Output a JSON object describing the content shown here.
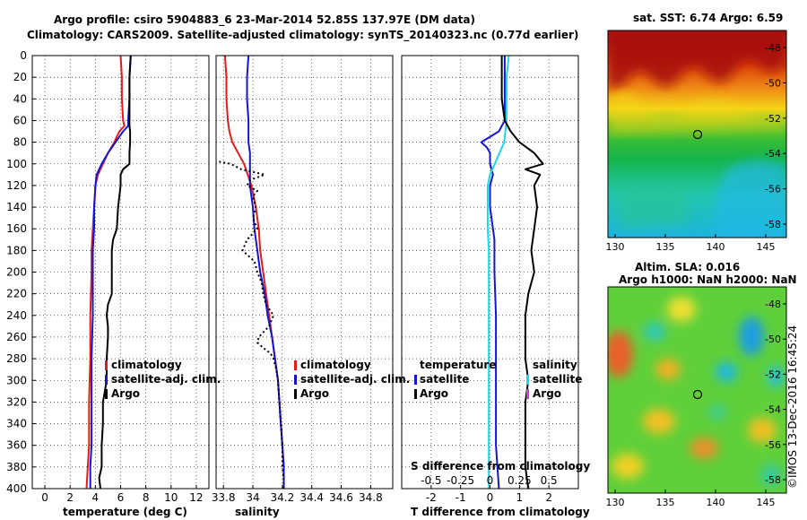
{
  "header": {
    "line1": "Argo profile: csiro 5904883_6 23-Mar-2014 52.85S 137.97E (DM data)",
    "line2": "Climatology: CARS2009. Satellite-adjusted climatology: synTS_20140323.nc (0.77d earlier)"
  },
  "colors": {
    "climatology": "#e41a1c",
    "satellite": "#1515d6",
    "argo": "#000000",
    "cyan": "#19d9e6"
  },
  "legend": {
    "climatology": "climatology",
    "satellite_adj": "satellite-adj. clim.",
    "argo": "Argo",
    "temperature": "temperature",
    "salinity": "salinity",
    "satellite": "satellite"
  },
  "sst_map": {
    "title": "sat. SST: 6.74 Argo: 6.59",
    "yticks": [
      "-48",
      "-50",
      "-52",
      "-54",
      "-56",
      "-58"
    ],
    "xticks": [
      "130",
      "135",
      "140",
      "145"
    ]
  },
  "sla_map": {
    "title1": "Altim. SLA: 0.016",
    "title2": "Argo h1000: NaN h2000: NaN",
    "yticks": [
      "-48",
      "-50",
      "-52",
      "-54",
      "-56",
      "-58"
    ],
    "xticks": [
      "130",
      "135",
      "140",
      "145"
    ]
  },
  "stamp": "©IMOS 13-Dec-2016 16:45:24",
  "chart_data": [
    {
      "type": "line",
      "id": "temperature",
      "xlabel": "temperature (deg C)",
      "xlim": [
        -1,
        13
      ],
      "ylim": [
        400,
        0
      ],
      "xticks": [
        0,
        2,
        4,
        6,
        8,
        10,
        12
      ],
      "yticks": [
        0,
        20,
        40,
        60,
        80,
        100,
        120,
        140,
        160,
        180,
        200,
        220,
        240,
        260,
        280,
        300,
        320,
        340,
        360,
        380,
        400
      ],
      "series": [
        {
          "name": "climatology",
          "depth": [
            0,
            20,
            40,
            60,
            65,
            70,
            80,
            90,
            100,
            110,
            120,
            140,
            160,
            170,
            180,
            200,
            240,
            280,
            320,
            360,
            380,
            400
          ],
          "values": [
            6.0,
            6.1,
            6.1,
            6.2,
            6.3,
            5.9,
            5.5,
            5.0,
            4.6,
            4.2,
            4.0,
            3.9,
            3.8,
            3.75,
            3.7,
            3.7,
            3.6,
            3.6,
            3.5,
            3.5,
            3.4,
            3.3
          ]
        },
        {
          "name": "satellite-adj. clim.",
          "depth": [
            0,
            20,
            40,
            60,
            65,
            70,
            80,
            90,
            100,
            110,
            120,
            140,
            160,
            170,
            180,
            200,
            240,
            280,
            320,
            360,
            380,
            400
          ],
          "values": [
            6.8,
            6.7,
            6.7,
            6.6,
            6.6,
            6.2,
            5.6,
            5.0,
            4.5,
            4.1,
            4.0,
            3.9,
            3.9,
            3.85,
            3.8,
            3.8,
            3.8,
            3.7,
            3.7,
            3.7,
            3.6,
            3.6
          ]
        },
        {
          "name": "Argo",
          "depth": [
            0,
            20,
            40,
            60,
            65,
            70,
            80,
            90,
            100,
            105,
            110,
            120,
            140,
            160,
            170,
            180,
            200,
            220,
            230,
            240,
            250,
            260,
            280,
            300,
            320,
            340,
            360,
            380,
            390,
            400
          ],
          "values": [
            6.8,
            6.7,
            6.7,
            6.7,
            6.7,
            6.75,
            6.75,
            6.7,
            6.7,
            6.2,
            6.0,
            6.0,
            5.8,
            5.7,
            5.4,
            5.3,
            5.3,
            5.3,
            5.0,
            4.9,
            5.0,
            5.0,
            4.9,
            4.9,
            4.6,
            4.6,
            4.5,
            4.5,
            4.3,
            4.4
          ]
        }
      ]
    },
    {
      "type": "line",
      "id": "salinity",
      "xlabel": "salinity",
      "xlim": [
        33.75,
        34.95
      ],
      "ylim": [
        400,
        0
      ],
      "xticks": [
        33.8,
        34,
        34.2,
        34.4,
        34.6,
        34.8
      ],
      "xticklabels": [
        "33.8",
        "34",
        "34.2",
        "34.4",
        "34.6",
        "34.8"
      ],
      "series": [
        {
          "name": "climatology",
          "depth": [
            0,
            20,
            40,
            60,
            70,
            80,
            90,
            100,
            120,
            140,
            160,
            180,
            200,
            220,
            240,
            260,
            280,
            300,
            320,
            340,
            360,
            380,
            400
          ],
          "values": [
            33.81,
            33.82,
            33.82,
            33.83,
            33.84,
            33.86,
            33.9,
            33.94,
            33.99,
            34.02,
            34.04,
            34.05,
            34.07,
            34.09,
            34.11,
            34.13,
            34.15,
            34.17,
            34.18,
            34.19,
            34.2,
            34.21,
            34.21
          ]
        },
        {
          "name": "satellite-adj. clim.",
          "depth": [
            0,
            20,
            40,
            60,
            70,
            80,
            90,
            100,
            120,
            140,
            160,
            180,
            200,
            220,
            240,
            260,
            280,
            300,
            320,
            340,
            360,
            380,
            400
          ],
          "values": [
            33.97,
            33.96,
            33.96,
            33.97,
            33.97,
            33.97,
            33.98,
            33.98,
            33.98,
            34.0,
            34.01,
            34.03,
            34.05,
            34.08,
            34.1,
            34.13,
            34.15,
            34.17,
            34.18,
            34.19,
            34.2,
            34.21,
            34.21
          ]
        },
        {
          "name": "Argo",
          "depth": [
            98,
            100,
            105,
            110,
            115,
            120,
            125,
            130,
            135,
            140,
            150,
            160,
            170,
            180,
            190,
            200,
            210,
            220,
            230,
            240,
            250,
            260,
            265,
            270,
            275,
            280,
            290,
            300,
            320,
            340,
            360,
            380,
            390,
            400
          ],
          "values": [
            33.77,
            33.85,
            33.92,
            34.08,
            33.98,
            33.96,
            34.03,
            34.0,
            34.01,
            34.02,
            34.0,
            34.03,
            33.96,
            33.93,
            34.01,
            34.03,
            34.06,
            34.07,
            34.09,
            34.14,
            34.11,
            34.04,
            34.03,
            34.07,
            34.12,
            34.14,
            34.16,
            34.17,
            34.18,
            34.19,
            34.2,
            34.2,
            34.21,
            34.21
          ]
        }
      ]
    },
    {
      "type": "line",
      "id": "differences",
      "xlabel": "T difference from climatology",
      "xlabel_top": "S difference from climatology",
      "xlim": [
        -3,
        3
      ],
      "ylim": [
        400,
        0
      ],
      "xticks": [
        -2,
        -1,
        0,
        1,
        2
      ],
      "xticklabels": [
        "-2",
        "-1",
        "0",
        "1",
        "2"
      ],
      "top_ticks": [
        -0.5,
        -0.25,
        0,
        0.25,
        0.5
      ],
      "top_ticklabels": [
        "-0.5",
        "-0.25",
        "0",
        "0.25",
        "0.5"
      ],
      "series": [
        {
          "name": "temperature satellite",
          "depth": [
            0,
            20,
            40,
            60,
            65,
            70,
            75,
            80,
            85,
            90,
            100,
            110,
            120,
            140,
            160,
            170,
            200,
            240,
            280,
            320,
            360,
            400
          ],
          "values": [
            0.5,
            0.5,
            0.5,
            0.5,
            0.4,
            0.3,
            0.0,
            -0.3,
            -0.1,
            0.0,
            0.0,
            0.1,
            0.0,
            0.0,
            0.1,
            0.15,
            0.15,
            0.2,
            0.2,
            0.2,
            0.2,
            0.3
          ]
        },
        {
          "name": "salinity satellite",
          "depth": [
            0,
            20,
            40,
            60,
            80,
            90,
            100,
            110,
            120,
            140,
            160,
            180,
            200,
            240,
            280,
            300,
            320,
            360,
            400
          ],
          "values": [
            0.16,
            0.14,
            0.14,
            0.14,
            0.12,
            0.08,
            0.04,
            0.0,
            -0.02,
            -0.02,
            -0.02,
            -0.01,
            -0.01,
            -0.01,
            -0.01,
            -0.01,
            -0.01,
            -0.01,
            -0.01
          ]
        },
        {
          "name": "Argo",
          "depth": [
            0,
            20,
            40,
            60,
            70,
            80,
            90,
            100,
            105,
            110,
            120,
            140,
            160,
            180,
            200,
            220,
            240,
            260,
            280,
            300,
            320,
            340,
            360,
            380,
            400
          ],
          "values": [
            0.4,
            0.4,
            0.4,
            0.5,
            0.7,
            1.0,
            1.5,
            1.8,
            1.2,
            1.7,
            1.5,
            1.6,
            1.5,
            1.4,
            1.5,
            1.3,
            1.2,
            1.2,
            1.2,
            1.3,
            1.2,
            1.2,
            1.2,
            1.2,
            1.3
          ]
        }
      ]
    }
  ]
}
